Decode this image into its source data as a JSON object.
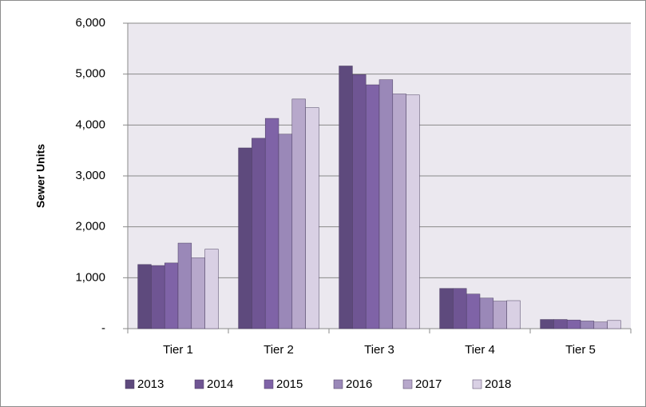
{
  "chart_data": {
    "type": "bar",
    "y_label": "Sewer Units",
    "categories": [
      "Tier 1",
      "Tier 2",
      "Tier 3",
      "Tier 4",
      "Tier 5"
    ],
    "series": [
      {
        "name": "2013",
        "color": "#5e4a7d",
        "values": [
          1260,
          3550,
          5160,
          790,
          180
        ]
      },
      {
        "name": "2014",
        "color": "#6f5593",
        "values": [
          1240,
          3740,
          4990,
          790,
          180
        ]
      },
      {
        "name": "2015",
        "color": "#7f63a7",
        "values": [
          1290,
          4130,
          4790,
          680,
          170
        ]
      },
      {
        "name": "2016",
        "color": "#9a88b8",
        "values": [
          1680,
          3820,
          4890,
          600,
          150
        ]
      },
      {
        "name": "2017",
        "color": "#b7a8cb",
        "values": [
          1390,
          4510,
          4610,
          540,
          130
        ]
      },
      {
        "name": "2018",
        "color": "#d9d0e4",
        "values": [
          1560,
          4340,
          4590,
          550,
          160
        ]
      }
    ],
    "ylim": [
      0,
      6000
    ],
    "yticks": [
      {
        "value": 0,
        "label": "-"
      },
      {
        "value": 1000,
        "label": "1,000"
      },
      {
        "value": 2000,
        "label": "2,000"
      },
      {
        "value": 3000,
        "label": "3,000"
      },
      {
        "value": 4000,
        "label": "4,000"
      },
      {
        "value": 5000,
        "label": "5,000"
      },
      {
        "value": 6000,
        "label": "6,000"
      }
    ],
    "grid": true
  }
}
